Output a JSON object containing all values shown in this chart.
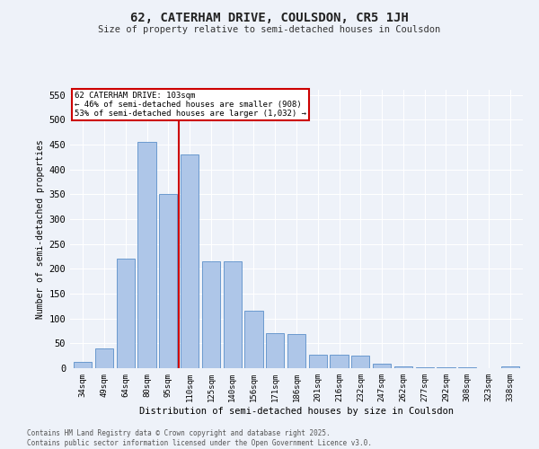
{
  "title": "62, CATERHAM DRIVE, COULSDON, CR5 1JH",
  "subtitle": "Size of property relative to semi-detached houses in Coulsdon",
  "xlabel": "Distribution of semi-detached houses by size in Coulsdon",
  "ylabel": "Number of semi-detached properties",
  "property_label": "62 CATERHAM DRIVE: 103sqm",
  "smaller_pct": 46,
  "smaller_n": 908,
  "larger_pct": 53,
  "larger_n": 1032,
  "categories": [
    "34sqm",
    "49sqm",
    "64sqm",
    "80sqm",
    "95sqm",
    "110sqm",
    "125sqm",
    "140sqm",
    "156sqm",
    "171sqm",
    "186sqm",
    "201sqm",
    "216sqm",
    "232sqm",
    "247sqm",
    "262sqm",
    "277sqm",
    "292sqm",
    "308sqm",
    "323sqm",
    "338sqm"
  ],
  "values": [
    12,
    40,
    220,
    455,
    350,
    430,
    215,
    215,
    115,
    70,
    68,
    28,
    27,
    26,
    9,
    4,
    2,
    1,
    1,
    0,
    4
  ],
  "bar_color": "#aec6e8",
  "bar_edge_color": "#5b8fc9",
  "vline_color": "#cc0000",
  "vline_x": 4.5,
  "annotation_box_color": "#cc0000",
  "ylim": [
    0,
    560
  ],
  "yticks": [
    0,
    50,
    100,
    150,
    200,
    250,
    300,
    350,
    400,
    450,
    500,
    550
  ],
  "background_color": "#eef2f9",
  "grid_color": "#ffffff",
  "footer": "Contains HM Land Registry data © Crown copyright and database right 2025.\nContains public sector information licensed under the Open Government Licence v3.0."
}
